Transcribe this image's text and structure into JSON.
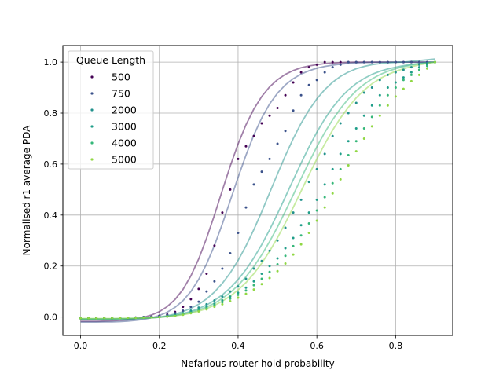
{
  "chart_data": {
    "type": "scatter",
    "xlabel": "Nefarious router hold probability",
    "ylabel": "Normalised r1 average PDA",
    "legend_title": "Queue Length",
    "legend_position": "upper-left",
    "grid": true,
    "xlim": [
      -0.045,
      0.945
    ],
    "ylim": [
      -0.072,
      1.065
    ],
    "xticks": [
      "0.0",
      "0.2",
      "0.4",
      "0.6",
      "0.8"
    ],
    "yticks": [
      "0.0",
      "0.2",
      "0.4",
      "0.6",
      "0.8",
      "1.0"
    ],
    "x": [
      0.0,
      0.02,
      0.04,
      0.06,
      0.08,
      0.1,
      0.12,
      0.14,
      0.16,
      0.18,
      0.2,
      0.22,
      0.24,
      0.26,
      0.28,
      0.3,
      0.32,
      0.34,
      0.36,
      0.38,
      0.4,
      0.42,
      0.44,
      0.46,
      0.48,
      0.5,
      0.52,
      0.54,
      0.56,
      0.58,
      0.6,
      0.62,
      0.64,
      0.66,
      0.68,
      0.7,
      0.72,
      0.74,
      0.76,
      0.78,
      0.8,
      0.82,
      0.84,
      0.86,
      0.88,
      0.9
    ],
    "series": [
      {
        "name": "500",
        "color": "#440154",
        "values": [
          -0.005,
          -0.005,
          -0.004,
          -0.004,
          -0.004,
          -0.003,
          -0.003,
          -0.002,
          0.0,
          0.002,
          0.005,
          0.01,
          0.02,
          0.04,
          0.07,
          0.11,
          0.17,
          0.28,
          0.41,
          0.5,
          0.62,
          0.67,
          0.71,
          0.76,
          0.79,
          0.82,
          0.87,
          0.92,
          0.96,
          0.98,
          0.99,
          1.0,
          1.0,
          1.0,
          1.0,
          1.0,
          1.0,
          1.0,
          1.0,
          1.0,
          1.0,
          1.0,
          1.0,
          1.0,
          1.0,
          1.0
        ],
        "fit": [
          -0.017,
          -0.017,
          -0.017,
          -0.016,
          -0.015,
          -0.013,
          -0.011,
          -0.007,
          -0.001,
          0.008,
          0.021,
          0.041,
          0.069,
          0.108,
          0.161,
          0.228,
          0.309,
          0.4,
          0.497,
          0.592,
          0.679,
          0.754,
          0.816,
          0.865,
          0.903,
          0.931,
          0.952,
          0.967,
          0.978,
          0.985,
          0.99,
          0.994,
          0.996,
          0.998,
          0.999,
          1.0,
          1.0,
          1.0,
          1.0,
          1.0,
          1.0,
          1.0,
          1.0,
          1.0,
          1.0,
          1.0
        ]
      },
      {
        "name": "750",
        "color": "#3b528b",
        "values": [
          -0.005,
          -0.005,
          -0.004,
          -0.004,
          -0.004,
          -0.003,
          -0.003,
          -0.002,
          0.0,
          0.002,
          0.004,
          0.008,
          0.015,
          0.025,
          0.04,
          0.06,
          0.1,
          0.14,
          0.19,
          0.25,
          0.33,
          0.43,
          0.52,
          0.57,
          0.62,
          0.68,
          0.73,
          0.81,
          0.87,
          0.91,
          0.93,
          0.96,
          0.98,
          0.99,
          1.0,
          1.0,
          1.0,
          1.0,
          1.0,
          1.0,
          1.0,
          1.0,
          1.0,
          1.0,
          1.0,
          1.0
        ],
        "fit": [
          -0.02,
          -0.02,
          -0.02,
          -0.019,
          -0.019,
          -0.018,
          -0.016,
          -0.013,
          -0.009,
          -0.003,
          0.006,
          0.019,
          0.038,
          0.064,
          0.1,
          0.148,
          0.208,
          0.281,
          0.365,
          0.456,
          0.548,
          0.635,
          0.714,
          0.781,
          0.836,
          0.878,
          0.911,
          0.935,
          0.953,
          0.966,
          0.976,
          0.983,
          0.988,
          0.992,
          0.995,
          0.997,
          0.998,
          0.999,
          1.0,
          1.0,
          1.0,
          1.0,
          1.0,
          1.0,
          1.0,
          1.0
        ]
      },
      {
        "name": "2000",
        "color": "#21918c",
        "values": [
          -0.005,
          -0.005,
          -0.005,
          -0.004,
          -0.004,
          -0.004,
          -0.003,
          -0.003,
          -0.002,
          -0.001,
          0.0,
          0.003,
          0.008,
          0.015,
          0.025,
          0.037,
          0.05,
          0.065,
          0.08,
          0.1,
          0.12,
          0.15,
          0.19,
          0.22,
          0.26,
          0.3,
          0.35,
          0.41,
          0.46,
          0.53,
          0.58,
          0.64,
          0.71,
          0.76,
          0.8,
          0.84,
          0.88,
          0.9,
          0.93,
          0.95,
          0.96,
          0.97,
          0.98,
          0.99,
          0.995,
          1.0
        ],
        "fit": [
          -0.01,
          -0.01,
          -0.01,
          -0.01,
          -0.009,
          -0.009,
          -0.008,
          -0.007,
          -0.005,
          -0.003,
          0.0,
          0.005,
          0.012,
          0.021,
          0.034,
          0.05,
          0.071,
          0.098,
          0.132,
          0.173,
          0.222,
          0.279,
          0.343,
          0.413,
          0.487,
          0.561,
          0.633,
          0.7,
          0.76,
          0.812,
          0.856,
          0.892,
          0.921,
          0.944,
          0.961,
          0.974,
          0.983,
          0.99,
          0.994,
          0.997,
          0.999,
          1.0,
          1.003,
          1.006,
          1.009,
          1.012
        ]
      },
      {
        "name": "3000",
        "color": "#1f9e89",
        "values": [
          -0.005,
          -0.005,
          -0.005,
          -0.004,
          -0.004,
          -0.004,
          -0.003,
          -0.003,
          -0.002,
          -0.001,
          0.0,
          0.002,
          0.006,
          0.012,
          0.02,
          0.03,
          0.04,
          0.052,
          0.065,
          0.08,
          0.095,
          0.115,
          0.14,
          0.17,
          0.2,
          0.23,
          0.27,
          0.31,
          0.36,
          0.41,
          0.46,
          0.52,
          0.58,
          0.64,
          0.69,
          0.74,
          0.79,
          0.83,
          0.87,
          0.9,
          0.92,
          0.94,
          0.96,
          0.98,
          0.99,
          1.0
        ],
        "fit": [
          -0.008,
          -0.008,
          -0.008,
          -0.008,
          -0.008,
          -0.007,
          -0.007,
          -0.006,
          -0.005,
          -0.003,
          -0.001,
          0.003,
          0.008,
          0.014,
          0.022,
          0.033,
          0.047,
          0.065,
          0.087,
          0.114,
          0.147,
          0.186,
          0.232,
          0.284,
          0.342,
          0.405,
          0.471,
          0.538,
          0.604,
          0.667,
          0.725,
          0.777,
          0.822,
          0.86,
          0.891,
          0.916,
          0.936,
          0.952,
          0.964,
          0.973,
          0.98,
          0.986,
          0.991,
          0.995,
          0.998,
          1.0
        ]
      },
      {
        "name": "4000",
        "color": "#35b779",
        "values": [
          -0.005,
          -0.005,
          -0.005,
          -0.004,
          -0.004,
          -0.004,
          -0.003,
          -0.003,
          -0.002,
          -0.001,
          0.0,
          0.002,
          0.005,
          0.01,
          0.017,
          0.026,
          0.035,
          0.046,
          0.058,
          0.072,
          0.087,
          0.104,
          0.125,
          0.15,
          0.177,
          0.207,
          0.24,
          0.278,
          0.32,
          0.367,
          0.418,
          0.47,
          0.525,
          0.58,
          0.635,
          0.69,
          0.74,
          0.785,
          0.83,
          0.87,
          0.9,
          0.93,
          0.95,
          0.97,
          0.985,
          1.0
        ],
        "fit": [
          -0.007,
          -0.007,
          -0.007,
          -0.007,
          -0.007,
          -0.006,
          -0.006,
          -0.005,
          -0.004,
          -0.003,
          -0.001,
          0.002,
          0.006,
          0.011,
          0.018,
          0.027,
          0.039,
          0.054,
          0.073,
          0.096,
          0.124,
          0.158,
          0.198,
          0.244,
          0.296,
          0.353,
          0.415,
          0.479,
          0.544,
          0.607,
          0.668,
          0.724,
          0.774,
          0.818,
          0.856,
          0.888,
          0.913,
          0.934,
          0.951,
          0.964,
          0.974,
          0.982,
          0.988,
          0.993,
          0.997,
          1.0
        ]
      },
      {
        "name": "5000",
        "color": "#90d743",
        "values": [
          -0.005,
          -0.005,
          -0.005,
          -0.004,
          -0.004,
          -0.004,
          -0.003,
          -0.003,
          -0.002,
          -0.001,
          0.0,
          0.002,
          0.004,
          0.009,
          0.015,
          0.022,
          0.03,
          0.04,
          0.05,
          0.062,
          0.076,
          0.091,
          0.108,
          0.129,
          0.153,
          0.18,
          0.21,
          0.245,
          0.285,
          0.33,
          0.378,
          0.43,
          0.485,
          0.54,
          0.595,
          0.65,
          0.7,
          0.748,
          0.79,
          0.83,
          0.865,
          0.895,
          0.925,
          0.95,
          0.975,
          1.0
        ],
        "fit": [
          -0.006,
          -0.006,
          -0.006,
          -0.006,
          -0.006,
          -0.006,
          -0.005,
          -0.005,
          -0.004,
          -0.003,
          -0.001,
          0.002,
          0.005,
          0.009,
          0.015,
          0.023,
          0.033,
          0.046,
          0.062,
          0.082,
          0.106,
          0.135,
          0.17,
          0.211,
          0.258,
          0.311,
          0.369,
          0.43,
          0.494,
          0.558,
          0.62,
          0.679,
          0.733,
          0.781,
          0.823,
          0.86,
          0.89,
          0.915,
          0.935,
          0.951,
          0.964,
          0.974,
          0.982,
          0.989,
          0.995,
          1.0
        ]
      }
    ]
  }
}
